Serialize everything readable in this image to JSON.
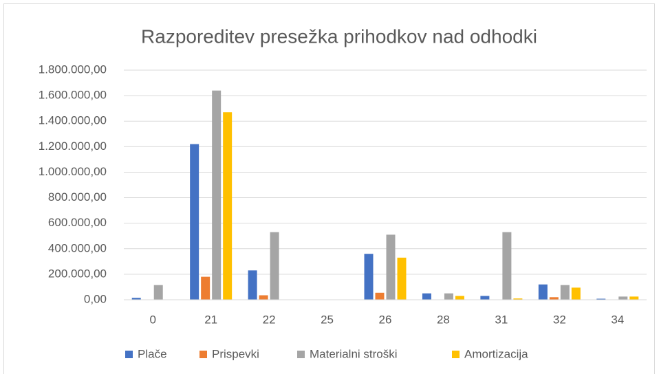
{
  "chart_data": {
    "type": "bar",
    "title": "Razporeditev presežka prihodkov nad odhodki",
    "categories": [
      "0",
      "21",
      "22",
      "25",
      "26",
      "28",
      "31",
      "32",
      "34"
    ],
    "series": [
      {
        "name": "Plače",
        "color": "#4472c4",
        "values": [
          15000,
          1220000,
          230000,
          0,
          360000,
          50000,
          30000,
          120000,
          8000
        ]
      },
      {
        "name": "Prispevki",
        "color": "#ed7d31",
        "values": [
          0,
          180000,
          35000,
          0,
          55000,
          0,
          0,
          20000,
          0
        ]
      },
      {
        "name": "Materialni stroški",
        "color": "#a5a5a5",
        "values": [
          115000,
          1640000,
          530000,
          0,
          510000,
          50000,
          530000,
          115000,
          25000
        ]
      },
      {
        "name": "Amortizacija",
        "color": "#ffc000",
        "values": [
          0,
          1470000,
          0,
          0,
          330000,
          30000,
          10000,
          95000,
          25000
        ]
      }
    ],
    "ylim": [
      0,
      1800000
    ],
    "yticks": [
      {
        "value": 0,
        "label": "0,00"
      },
      {
        "value": 200000,
        "label": "200.000,00"
      },
      {
        "value": 400000,
        "label": "400.000,00"
      },
      {
        "value": 600000,
        "label": "600.000,00"
      },
      {
        "value": 800000,
        "label": "800.000,00"
      },
      {
        "value": 1000000,
        "label": "1.000.000,00"
      },
      {
        "value": 1200000,
        "label": "1.200.000,00"
      },
      {
        "value": 1400000,
        "label": "1.400.000,00"
      },
      {
        "value": 1600000,
        "label": "1.600.000,00"
      },
      {
        "value": 1800000,
        "label": "1.800.000,00"
      }
    ],
    "grid": true,
    "legend": "bottom"
  }
}
